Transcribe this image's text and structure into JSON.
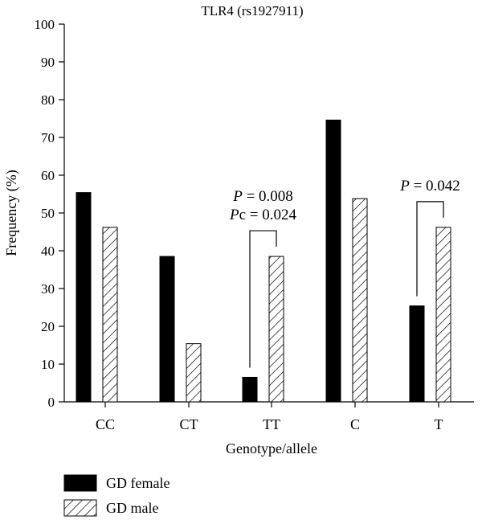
{
  "chart_data": {
    "type": "bar",
    "title": "TLR4 (rs1927911)",
    "xlabel": "Genotype/allele",
    "ylabel": "Frequency (%)",
    "ylim": [
      0,
      100
    ],
    "yticks": [
      0,
      10,
      20,
      30,
      40,
      50,
      60,
      70,
      80,
      90,
      100
    ],
    "categories": [
      "CC",
      "CT",
      "TT",
      "C",
      "T"
    ],
    "series": [
      {
        "name": "GD female",
        "style": "solid",
        "color": "#000000",
        "values": [
          55.4,
          38.5,
          6.5,
          74.6,
          25.4
        ]
      },
      {
        "name": "GD male",
        "style": "hatched",
        "color": "#000000",
        "values": [
          46.2,
          15.4,
          38.5,
          53.8,
          46.2
        ]
      }
    ],
    "legend_position": "bottom-left",
    "grid": false,
    "annotations": [
      {
        "category": "TT",
        "lines": [
          {
            "italic": "P",
            "text": " = 0.008"
          },
          {
            "italic": "P",
            "text": "c = 0.024"
          }
        ]
      },
      {
        "category": "T",
        "lines": [
          {
            "italic": "P",
            "text": " = 0.042"
          }
        ]
      }
    ]
  }
}
